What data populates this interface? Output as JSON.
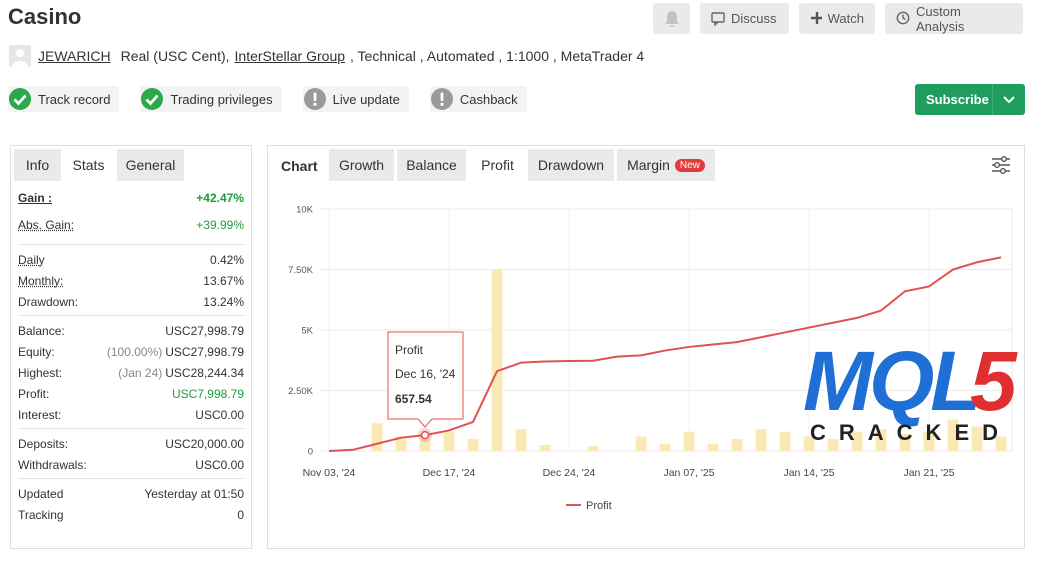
{
  "header": {
    "title": "Casino",
    "buttons": [
      "Discuss",
      "Watch",
      "Custom Analysis"
    ]
  },
  "account": {
    "user": "JEWARICH",
    "type": "Real (USC Cent),",
    "broker": "InterStellar Group",
    "details": ", Technical , Automated , 1:1000 , MetaTrader 4"
  },
  "badges": [
    {
      "text": "Track record",
      "status": "ok"
    },
    {
      "text": "Trading privileges",
      "status": "ok"
    },
    {
      "text": "Live update",
      "status": "warn"
    },
    {
      "text": "Cashback",
      "status": "warn"
    }
  ],
  "subscribe": "Subscribe",
  "stats_panel": {
    "tabs": [
      "Info",
      "Stats",
      "General"
    ],
    "active_tab": 1,
    "groups": [
      [
        {
          "label": "Gain :",
          "value": "+42.47%",
          "color": "#1a9e3f",
          "underline": true,
          "bold": true
        },
        {
          "label": "Abs. Gain:",
          "value": "+39.99%",
          "color": "#1a9e3f",
          "underline": true
        }
      ],
      [
        {
          "label": "Daily",
          "value": "0.42%",
          "underline": true
        },
        {
          "label": "Monthly:",
          "value": "13.67%",
          "underline": true
        },
        {
          "label": "Drawdown:",
          "value": "13.24%"
        }
      ],
      [
        {
          "label": "Balance:",
          "value": "USC27,998.79"
        },
        {
          "label": "Equity:",
          "note": "(100.00%)",
          "value": "USC27,998.79"
        },
        {
          "label": "Highest:",
          "note": "(Jan 24)",
          "value": "USC28,244.34"
        },
        {
          "label": "Profit:",
          "value": "USC7,998.79",
          "color": "#1a9e3f"
        },
        {
          "label": "Interest:",
          "value": "USC0.00"
        }
      ],
      [
        {
          "label": "Deposits:",
          "value": "USC20,000.00"
        },
        {
          "label": "Withdrawals:",
          "value": "USC0.00"
        }
      ],
      [
        {
          "label": "Updated",
          "value": "Yesterday at 01:50"
        },
        {
          "label": "Tracking",
          "value": "0"
        }
      ]
    ]
  },
  "chart_panel": {
    "label": "Chart",
    "tabs": [
      "Growth",
      "Balance",
      "Profit",
      "Drawdown",
      "Margin"
    ],
    "active_tab": 2,
    "new_badge": "New"
  },
  "chart_data": {
    "type": "line",
    "categories": [
      "Nov 03, '24",
      null,
      null,
      null,
      null,
      "Dec 17, '24",
      null,
      null,
      null,
      null,
      "Dec 24, '24",
      null,
      null,
      null,
      null,
      "Jan 07, '25",
      null,
      null,
      null,
      null,
      "Jan 14, '25",
      null,
      null,
      null,
      null,
      "Jan 21, '25",
      null,
      null,
      null
    ],
    "series": [
      {
        "name": "Profit",
        "color": "#e05252",
        "values": [
          0,
          50,
          300,
          550,
          657.54,
          850,
          1200,
          3300,
          3650,
          3700,
          3720,
          3730,
          3900,
          3950,
          4150,
          4300,
          4400,
          4500,
          4700,
          4900,
          5100,
          5300,
          5500,
          5800,
          6600,
          6800,
          7500,
          7800,
          8000
        ]
      },
      {
        "type": "bar",
        "color": "#fbe9b5",
        "values": [
          null,
          null,
          1150,
          600,
          500,
          800,
          500,
          7500,
          900,
          250,
          null,
          200,
          null,
          600,
          300,
          800,
          300,
          500,
          900,
          800,
          600,
          500,
          800,
          900,
          700,
          800,
          1300,
          1000,
          600
        ]
      }
    ],
    "ylim": [
      0,
      10000
    ],
    "yticks": [
      0,
      {
        "value": 2500,
        "label": "2.50K"
      },
      {
        "value": 5000,
        "label": "5K"
      },
      {
        "value": 7500,
        "label": "7.50K"
      },
      {
        "value": 10000,
        "label": "10K"
      }
    ],
    "grid": true,
    "legend": "bottom",
    "tooltip": {
      "date": "Dec 16, '24",
      "value": "657.54"
    }
  },
  "watermark": {
    "text": "MQL",
    "accent": "5",
    "caption": "CRACKED"
  }
}
